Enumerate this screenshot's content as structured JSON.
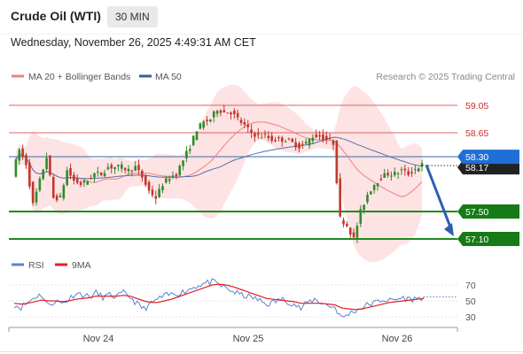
{
  "header": {
    "instrument": "Crude Oil (WTI)",
    "timeframe": "30 MIN",
    "timestamp": "Wednesday, November 26, 2025 4:49:31 AM CET"
  },
  "legend": {
    "ma20": "MA 20 + Bollinger Bands",
    "ma50": "MA 50",
    "credit": "Research © 2025 Trading Central"
  },
  "rsi_legend": {
    "rsi": "RSI",
    "ma": "9MA"
  },
  "colors": {
    "candle_up": "#2e8b2e",
    "candle_down": "#c0392b",
    "ma20": "#f08080",
    "ma50": "#5570b0",
    "bollinger_fill": "#fde0e0",
    "resistance": "#e06060",
    "support": "#1e8a1e",
    "current": "#4a7ab5",
    "arrow": "#2b5fb0",
    "rsi": "#5a82d0",
    "rsi_ma": "#e02020"
  },
  "chart_data": {
    "type": "candlestick",
    "ylim": [
      57.05,
      59.2
    ],
    "x_ticks": [
      "Nov 24",
      "Nov 25",
      "Nov 26"
    ],
    "current_price": 58.17,
    "levels": [
      {
        "value": 59.05,
        "label": "59.05",
        "kind": "resistance"
      },
      {
        "value": 58.65,
        "label": "58.65",
        "kind": "resistance"
      },
      {
        "value": 58.3,
        "label": "58.30",
        "kind": "pivot"
      },
      {
        "value": 57.5,
        "label": "57.50",
        "kind": "support"
      },
      {
        "value": 57.1,
        "label": "57.10",
        "kind": "support"
      }
    ],
    "forecast": {
      "from": 58.18,
      "to": 57.1
    },
    "price_path": [
      58.05,
      58.4,
      58.2,
      57.6,
      57.95,
      58.3,
      57.7,
      57.7,
      58.1,
      57.95,
      57.9,
      57.95,
      58.05,
      58.05,
      58.15,
      58.15,
      58.15,
      58.1,
      58.15,
      58.0,
      57.8,
      57.7,
      57.9,
      58.0,
      58.05,
      58.25,
      58.45,
      58.7,
      58.8,
      58.85,
      59.0,
      58.95,
      58.95,
      58.85,
      58.75,
      58.65,
      58.6,
      58.6,
      58.55,
      58.55,
      58.55,
      58.5,
      58.45,
      58.5,
      58.6,
      58.6,
      58.55,
      58.5,
      57.4,
      57.3,
      57.1,
      57.5,
      57.75,
      57.9,
      58.0,
      58.05,
      58.05,
      58.1,
      58.05,
      58.12,
      58.18
    ],
    "rsi_ylim": [
      20,
      80
    ],
    "rsi_ticks": [
      70,
      50,
      30
    ],
    "rsi": [
      45,
      42,
      48,
      55,
      58,
      44,
      50,
      47,
      52,
      60,
      58,
      55,
      60,
      55,
      57,
      55,
      60,
      55,
      46,
      40,
      46,
      52,
      56,
      58,
      60,
      62,
      66,
      70,
      72,
      74,
      70,
      66,
      62,
      58,
      56,
      54,
      50,
      46,
      48,
      52,
      50,
      46,
      40,
      48,
      52,
      48,
      44,
      42,
      28,
      34,
      38,
      42,
      46,
      48,
      52,
      50,
      52,
      54,
      52,
      53,
      55
    ],
    "rsi_ma": [
      47,
      46,
      47,
      49,
      51,
      50,
      50,
      49,
      50,
      52,
      53,
      54,
      56,
      56,
      56,
      56,
      57,
      56,
      53,
      50,
      48,
      48,
      50,
      52,
      55,
      58,
      61,
      64,
      67,
      70,
      71,
      70,
      68,
      65,
      62,
      59,
      56,
      53,
      52,
      51,
      50,
      49,
      47,
      47,
      47,
      47,
      46,
      45,
      41,
      40,
      39,
      40,
      42,
      44,
      46,
      48,
      49,
      50,
      51,
      52,
      53
    ]
  }
}
